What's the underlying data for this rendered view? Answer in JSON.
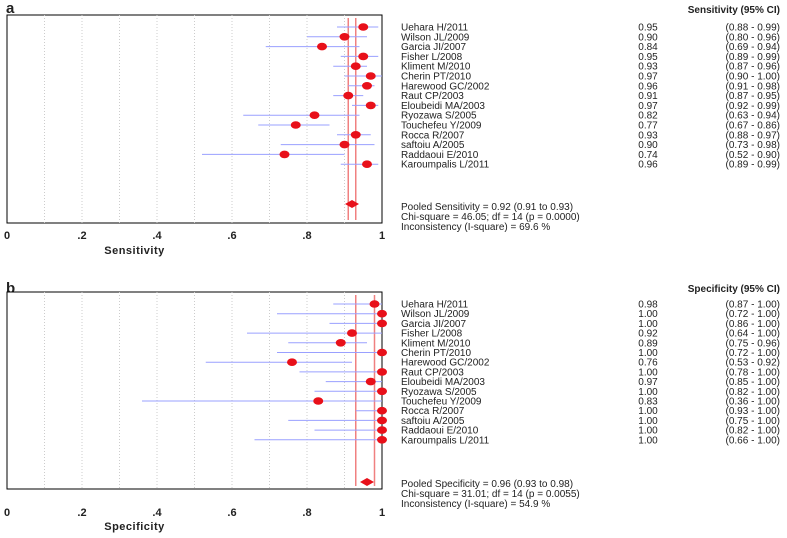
{
  "colors": {
    "marker": "#e8101a",
    "ci": "#9aa0ff",
    "pooled_line": "#f08080",
    "grid": "#cccccc"
  },
  "chart_data": [
    {
      "type": "forest",
      "panel_label": "a",
      "xlabel": "Sensitivity",
      "xlim": [
        0,
        1
      ],
      "xticks": [
        "0",
        ".2",
        ".4",
        ".6",
        ".8",
        "1"
      ],
      "column_header": "Sensitivity (95% CI)",
      "studies": [
        {
          "name": "Uehara H/2011",
          "est": 0.95,
          "lo": 0.88,
          "hi": 0.99,
          "est_text": "0.95",
          "ci_text": "(0.88 - 0.99)"
        },
        {
          "name": "Wilson JL/2009",
          "est": 0.9,
          "lo": 0.8,
          "hi": 0.96,
          "est_text": "0.90",
          "ci_text": "(0.80 - 0.96)"
        },
        {
          "name": "Garcia JI/2007",
          "est": 0.84,
          "lo": 0.69,
          "hi": 0.94,
          "est_text": "0.84",
          "ci_text": "(0.69 - 0.94)"
        },
        {
          "name": "Fisher L/2008",
          "est": 0.95,
          "lo": 0.89,
          "hi": 0.99,
          "est_text": "0.95",
          "ci_text": "(0.89 - 0.99)"
        },
        {
          "name": "Kliment M/2010",
          "est": 0.93,
          "lo": 0.87,
          "hi": 0.96,
          "est_text": "0.93",
          "ci_text": "(0.87 - 0.96)"
        },
        {
          "name": "Cherin PT/2010",
          "est": 0.97,
          "lo": 0.9,
          "hi": 1.0,
          "est_text": "0.97",
          "ci_text": "(0.90 - 1.00)"
        },
        {
          "name": "Harewood GC/2002",
          "est": 0.96,
          "lo": 0.91,
          "hi": 0.98,
          "est_text": "0.96",
          "ci_text": "(0.91 - 0.98)"
        },
        {
          "name": "Raut CP/2003",
          "est": 0.91,
          "lo": 0.87,
          "hi": 0.95,
          "est_text": "0.91",
          "ci_text": "(0.87 - 0.95)"
        },
        {
          "name": "Eloubeidi MA/2003",
          "est": 0.97,
          "lo": 0.92,
          "hi": 0.99,
          "est_text": "0.97",
          "ci_text": "(0.92 - 0.99)"
        },
        {
          "name": "Ryozawa S/2005",
          "est": 0.82,
          "lo": 0.63,
          "hi": 0.94,
          "est_text": "0.82",
          "ci_text": "(0.63 - 0.94)"
        },
        {
          "name": "Touchefeu Y/2009",
          "est": 0.77,
          "lo": 0.67,
          "hi": 0.86,
          "est_text": "0.77",
          "ci_text": "(0.67 - 0.86)"
        },
        {
          "name": "Rocca R/2007",
          "est": 0.93,
          "lo": 0.88,
          "hi": 0.97,
          "est_text": "0.93",
          "ci_text": "(0.88 - 0.97)"
        },
        {
          "name": "saftoiu A/2005",
          "est": 0.9,
          "lo": 0.73,
          "hi": 0.98,
          "est_text": "0.90",
          "ci_text": "(0.73 - 0.98)"
        },
        {
          "name": "Raddaoui E/2010",
          "est": 0.74,
          "lo": 0.52,
          "hi": 0.9,
          "est_text": "0.74",
          "ci_text": "(0.52 - 0.90)"
        },
        {
          "name": "Karoumpalis L/2011",
          "est": 0.96,
          "lo": 0.89,
          "hi": 0.99,
          "est_text": "0.96",
          "ci_text": "(0.89 - 0.99)"
        }
      ],
      "pooled": {
        "est": 0.92,
        "lo": 0.91,
        "hi": 0.93
      },
      "summary": [
        "Pooled Sensitivity = 0.92 (0.91 to 0.93)",
        "Chi-square = 46.05; df =  14 (p = 0.0000)",
        "Inconsistency (I-square) = 69.6 %"
      ]
    },
    {
      "type": "forest",
      "panel_label": "b",
      "xlabel": "Specificity",
      "xlim": [
        0,
        1
      ],
      "xticks": [
        "0",
        ".2",
        ".4",
        ".6",
        ".8",
        "1"
      ],
      "column_header": "Specificity (95% CI)",
      "studies": [
        {
          "name": "Uehara H/2011",
          "est": 0.98,
          "lo": 0.87,
          "hi": 1.0,
          "est_text": "0.98",
          "ci_text": "(0.87 - 1.00)"
        },
        {
          "name": "Wilson JL/2009",
          "est": 1.0,
          "lo": 0.72,
          "hi": 1.0,
          "est_text": "1.00",
          "ci_text": "(0.72 - 1.00)"
        },
        {
          "name": "Garcia JI/2007",
          "est": 1.0,
          "lo": 0.86,
          "hi": 1.0,
          "est_text": "1.00",
          "ci_text": "(0.86 - 1.00)"
        },
        {
          "name": "Fisher L/2008",
          "est": 0.92,
          "lo": 0.64,
          "hi": 1.0,
          "est_text": "0.92",
          "ci_text": "(0.64 - 1.00)"
        },
        {
          "name": "Kliment M/2010",
          "est": 0.89,
          "lo": 0.75,
          "hi": 0.96,
          "est_text": "0.89",
          "ci_text": "(0.75 - 0.96)"
        },
        {
          "name": "Cherin PT/2010",
          "est": 1.0,
          "lo": 0.72,
          "hi": 1.0,
          "est_text": "1.00",
          "ci_text": "(0.72 - 1.00)"
        },
        {
          "name": "Harewood GC/2002",
          "est": 0.76,
          "lo": 0.53,
          "hi": 0.92,
          "est_text": "0.76",
          "ci_text": "(0.53 - 0.92)"
        },
        {
          "name": "Raut CP/2003",
          "est": 1.0,
          "lo": 0.78,
          "hi": 1.0,
          "est_text": "1.00",
          "ci_text": "(0.78 - 1.00)"
        },
        {
          "name": "Eloubeidi MA/2003",
          "est": 0.97,
          "lo": 0.85,
          "hi": 1.0,
          "est_text": "0.97",
          "ci_text": "(0.85 - 1.00)"
        },
        {
          "name": "Ryozawa S/2005",
          "est": 1.0,
          "lo": 0.82,
          "hi": 1.0,
          "est_text": "1.00",
          "ci_text": "(0.82 - 1.00)"
        },
        {
          "name": "Touchefeu Y/2009",
          "est": 0.83,
          "lo": 0.36,
          "hi": 1.0,
          "est_text": "0.83",
          "ci_text": "(0.36 - 1.00)"
        },
        {
          "name": "Rocca R/2007",
          "est": 1.0,
          "lo": 0.93,
          "hi": 1.0,
          "est_text": "1.00",
          "ci_text": "(0.93 - 1.00)"
        },
        {
          "name": "saftoiu A/2005",
          "est": 1.0,
          "lo": 0.75,
          "hi": 1.0,
          "est_text": "1.00",
          "ci_text": "(0.75 - 1.00)"
        },
        {
          "name": "Raddaoui E/2010",
          "est": 1.0,
          "lo": 0.82,
          "hi": 1.0,
          "est_text": "1.00",
          "ci_text": "(0.82 - 1.00)"
        },
        {
          "name": "Karoumpalis L/2011",
          "est": 1.0,
          "lo": 0.66,
          "hi": 1.0,
          "est_text": "1.00",
          "ci_text": "(0.66 - 1.00)"
        }
      ],
      "pooled": {
        "est": 0.96,
        "lo": 0.93,
        "hi": 0.98
      },
      "summary": [
        "Pooled Specificity = 0.96 (0.93 to 0.98)",
        "Chi-square = 31.01; df =  14 (p = 0.0055)",
        "Inconsistency (I-square) = 54.9 %"
      ]
    }
  ]
}
